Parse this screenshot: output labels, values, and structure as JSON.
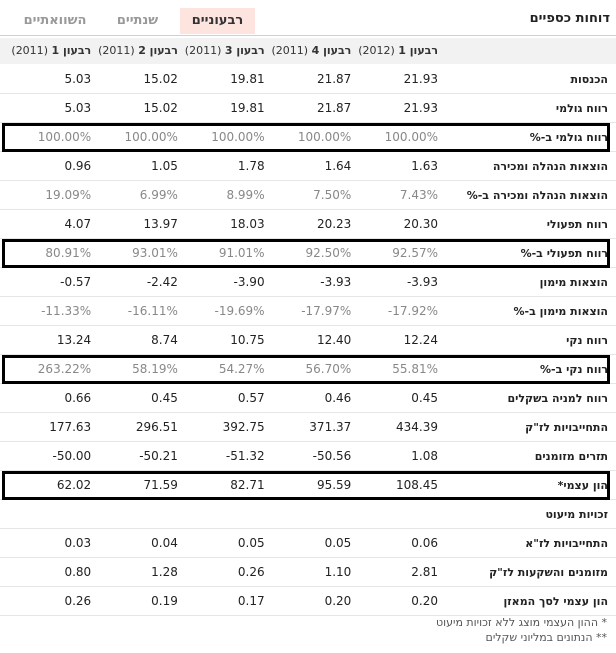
{
  "header": {
    "title": "דוחות כספיים",
    "tabs": [
      "רבעוניים",
      "שנתיים",
      "השוואתיים"
    ],
    "active_tab": 0
  },
  "columns": [
    {
      "quarter": "רבעון 1",
      "year": "(2012)"
    },
    {
      "quarter": "רבעון 4",
      "year": "(2011)"
    },
    {
      "quarter": "רבעון 3",
      "year": "(2011)"
    },
    {
      "quarter": "רבעון 2",
      "year": "(2011)"
    },
    {
      "quarter": "רבעון 1",
      "year": "(2011)"
    }
  ],
  "rows": [
    {
      "label": "הכנסות",
      "values": [
        "21.93",
        "21.87",
        "19.81",
        "15.02",
        "5.03"
      ]
    },
    {
      "label": "רווח גולמי",
      "values": [
        "21.93",
        "21.87",
        "19.81",
        "15.02",
        "5.03"
      ]
    },
    {
      "label": "רווח גולמי ב-%",
      "values": [
        "100.00%",
        "100.00%",
        "100.00%",
        "100.00%",
        "100.00%"
      ],
      "highlighted": true,
      "muted": true
    },
    {
      "label": "הוצאות הנהלה ומכירה",
      "values": [
        "1.63",
        "1.64",
        "1.78",
        "1.05",
        "0.96"
      ]
    },
    {
      "label": "הוצאות הנהלה ומכירה ב-%",
      "values": [
        "7.43%",
        "7.50%",
        "8.99%",
        "6.99%",
        "19.09%"
      ],
      "muted": true
    },
    {
      "label": "רווח תפעולי",
      "values": [
        "20.30",
        "20.23",
        "18.03",
        "13.97",
        "4.07"
      ]
    },
    {
      "label": "רווח תפעולי ב-%",
      "values": [
        "92.57%",
        "92.50%",
        "91.01%",
        "93.01%",
        "80.91%"
      ],
      "highlighted": true,
      "muted": true
    },
    {
      "label": "הוצאות מימון",
      "values": [
        "-3.93",
        "-3.93",
        "-3.90",
        "-2.42",
        "-0.57"
      ]
    },
    {
      "label": "הוצאות מימון ב-%",
      "values": [
        "-17.92%",
        "-17.97%",
        "-19.69%",
        "-16.11%",
        "-11.33%"
      ],
      "muted": true
    },
    {
      "label": "רווח נקי",
      "values": [
        "12.24",
        "12.40",
        "10.75",
        "8.74",
        "13.24"
      ]
    },
    {
      "label": "רווח נקי ב-%",
      "values": [
        "55.81%",
        "56.70%",
        "54.27%",
        "58.19%",
        "263.22%"
      ],
      "highlighted": true,
      "muted": true
    },
    {
      "label": "רווח למניה בשקלים",
      "values": [
        "0.45",
        "0.46",
        "0.57",
        "0.45",
        "0.66"
      ]
    },
    {
      "label": "התחייבויות לז\"ק",
      "values": [
        "434.39",
        "371.37",
        "392.75",
        "296.51",
        "177.63"
      ]
    },
    {
      "label": "תזרים מזומנים",
      "values": [
        "1.08",
        "-50.56",
        "-51.32",
        "-50.21",
        "-50.00"
      ]
    },
    {
      "label": "הון עצמי*",
      "values": [
        "108.45",
        "95.59",
        "82.71",
        "71.59",
        "62.02"
      ],
      "highlighted": true
    },
    {
      "label": "זכויות מיעוט",
      "values": []
    },
    {
      "label": "התחייבויות לז\"א",
      "values": [
        "0.06",
        "0.05",
        "0.05",
        "0.04",
        "0.03"
      ]
    },
    {
      "label": "מזומנים והשקעות לז\"ק",
      "values": [
        "2.81",
        "1.10",
        "0.26",
        "1.28",
        "0.80"
      ]
    },
    {
      "label": "הון עצמי לסך המאזן",
      "values": [
        "0.20",
        "0.20",
        "0.17",
        "0.19",
        "0.26"
      ]
    }
  ],
  "footnotes": [
    "* ההון העצמי מוצג ללא זכויות מיעוט",
    "** הנתונים במליוני שקלים"
  ]
}
